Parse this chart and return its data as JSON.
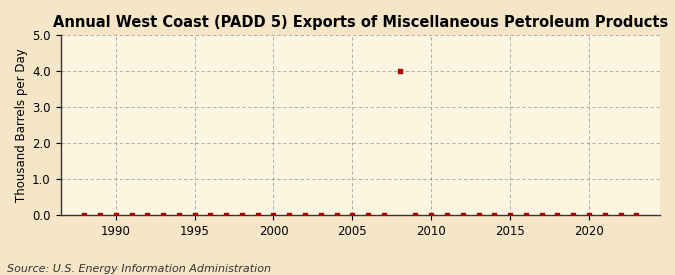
{
  "title": "Annual West Coast (PADD 5) Exports of Miscellaneous Petroleum Products",
  "ylabel": "Thousand Barrels per Day",
  "source": "Source: U.S. Energy Information Administration",
  "background_color": "#f5e6c8",
  "plot_background_color": "#fdf5e0",
  "x_min": 1986.5,
  "x_max": 2024.5,
  "y_min": 0.0,
  "y_max": 5.0,
  "y_ticks": [
    0.0,
    1.0,
    2.0,
    3.0,
    4.0,
    5.0
  ],
  "x_ticks": [
    1990,
    1995,
    2000,
    2005,
    2010,
    2015,
    2020
  ],
  "grid_color": "#999999",
  "marker_color": "#aa0000",
  "marker_style": "s",
  "marker_size": 3,
  "data_years": [
    1988,
    1989,
    1990,
    1991,
    1992,
    1993,
    1994,
    1995,
    1996,
    1997,
    1998,
    1999,
    2000,
    2001,
    2002,
    2003,
    2004,
    2005,
    2006,
    2007,
    2008,
    2009,
    2010,
    2011,
    2012,
    2013,
    2014,
    2015,
    2016,
    2017,
    2018,
    2019,
    2020,
    2021,
    2022,
    2023
  ],
  "data_values": [
    0.0,
    0.0,
    0.0,
    0.0,
    0.0,
    0.0,
    0.0,
    0.0,
    0.0,
    0.0,
    0.0,
    0.0,
    0.0,
    0.0,
    0.0,
    0.0,
    0.0,
    0.0,
    0.0,
    0.0,
    4.0,
    0.0,
    0.0,
    0.0,
    0.0,
    0.0,
    0.0,
    0.0,
    0.0,
    0.0,
    0.0,
    0.0,
    0.0,
    0.0,
    0.0,
    0.0
  ],
  "title_fontsize": 10.5,
  "ylabel_fontsize": 8.5,
  "tick_fontsize": 8.5,
  "source_fontsize": 8
}
